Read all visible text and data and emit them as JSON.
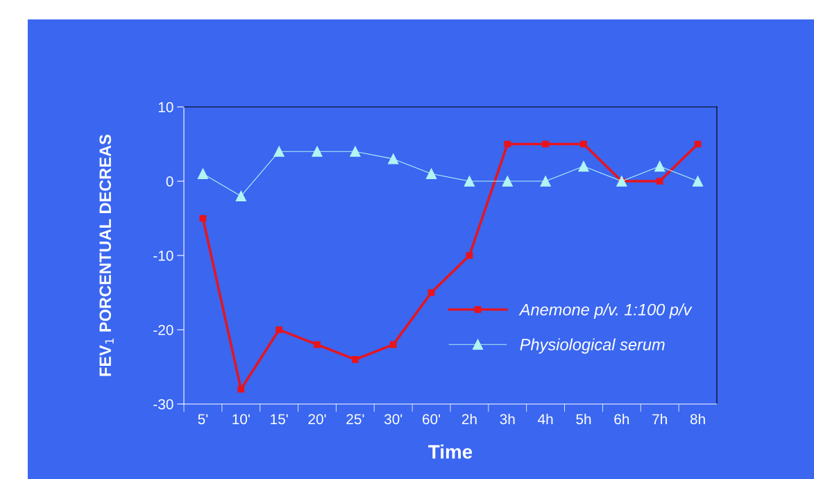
{
  "chart_data": {
    "type": "line",
    "xlabel": "Time",
    "ylabel": "FEV$_{1}$ PORCENTUAL DECREAS",
    "categories": [
      "5'",
      "10'",
      "15'",
      "20'",
      "25'",
      "30'",
      "60'",
      "2h",
      "3h",
      "4h",
      "5h",
      "6h",
      "7h",
      "8h"
    ],
    "series": [
      {
        "name": "Anemone p/v. 1:100 p/v",
        "color": "#e8141c",
        "marker": "square",
        "values": [
          -5,
          -28,
          -20,
          -22,
          -24,
          -22,
          -15,
          -10,
          5,
          5,
          5,
          0,
          0,
          5
        ]
      },
      {
        "name": "Physiological serum",
        "color": "#b0f4f4",
        "marker": "triangle",
        "values": [
          1,
          -2,
          4,
          4,
          4,
          3,
          1,
          0,
          0,
          0,
          2,
          0,
          2,
          0
        ]
      }
    ],
    "ylim": [
      -30,
      10
    ],
    "yticks": [
      -30,
      -20,
      -10,
      0,
      10
    ],
    "grid": false,
    "legend": "bottom right"
  }
}
